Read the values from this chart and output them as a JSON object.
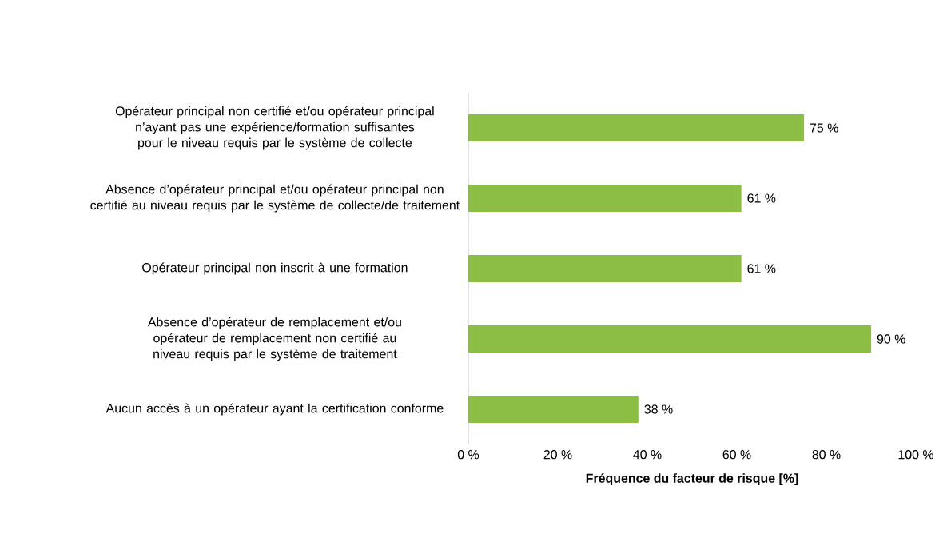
{
  "chart_data": {
    "type": "bar",
    "orientation": "horizontal",
    "xlabel": "Fréquence du facteur de risque [%]",
    "categories": [
      "Opérateur principal non certifié et/ou opérateur principal n’ayant pas une expérience/formation suffisantes pour le niveau requis par le système de collecte",
      "Absence d’opérateur principal et/ou opérateur principal non certifié au niveau requis par le système de collecte/de traitement",
      "Opérateur principal non inscrit à une formation",
      "Absence d’opérateur de remplacement et/ou opérateur de remplacement non certifié au niveau requis par le système de traitement",
      "Aucun accès à un opérateur ayant la certification conforme"
    ],
    "values": [
      75,
      61,
      61,
      90,
      38
    ],
    "value_labels": [
      "75 %",
      "61 %",
      "61 %",
      "90 %",
      "38 %"
    ],
    "color": "#8cbd45",
    "xlim": [
      0,
      100
    ],
    "xticks": [
      {
        "value": 0,
        "label": "0 %"
      },
      {
        "value": 20,
        "label": "20 %"
      },
      {
        "value": 40,
        "label": "40 %"
      },
      {
        "value": 60,
        "label": "60 %"
      },
      {
        "value": 80,
        "label": "80 %"
      },
      {
        "value": 100,
        "label": "100 %"
      }
    ],
    "grid": false
  }
}
